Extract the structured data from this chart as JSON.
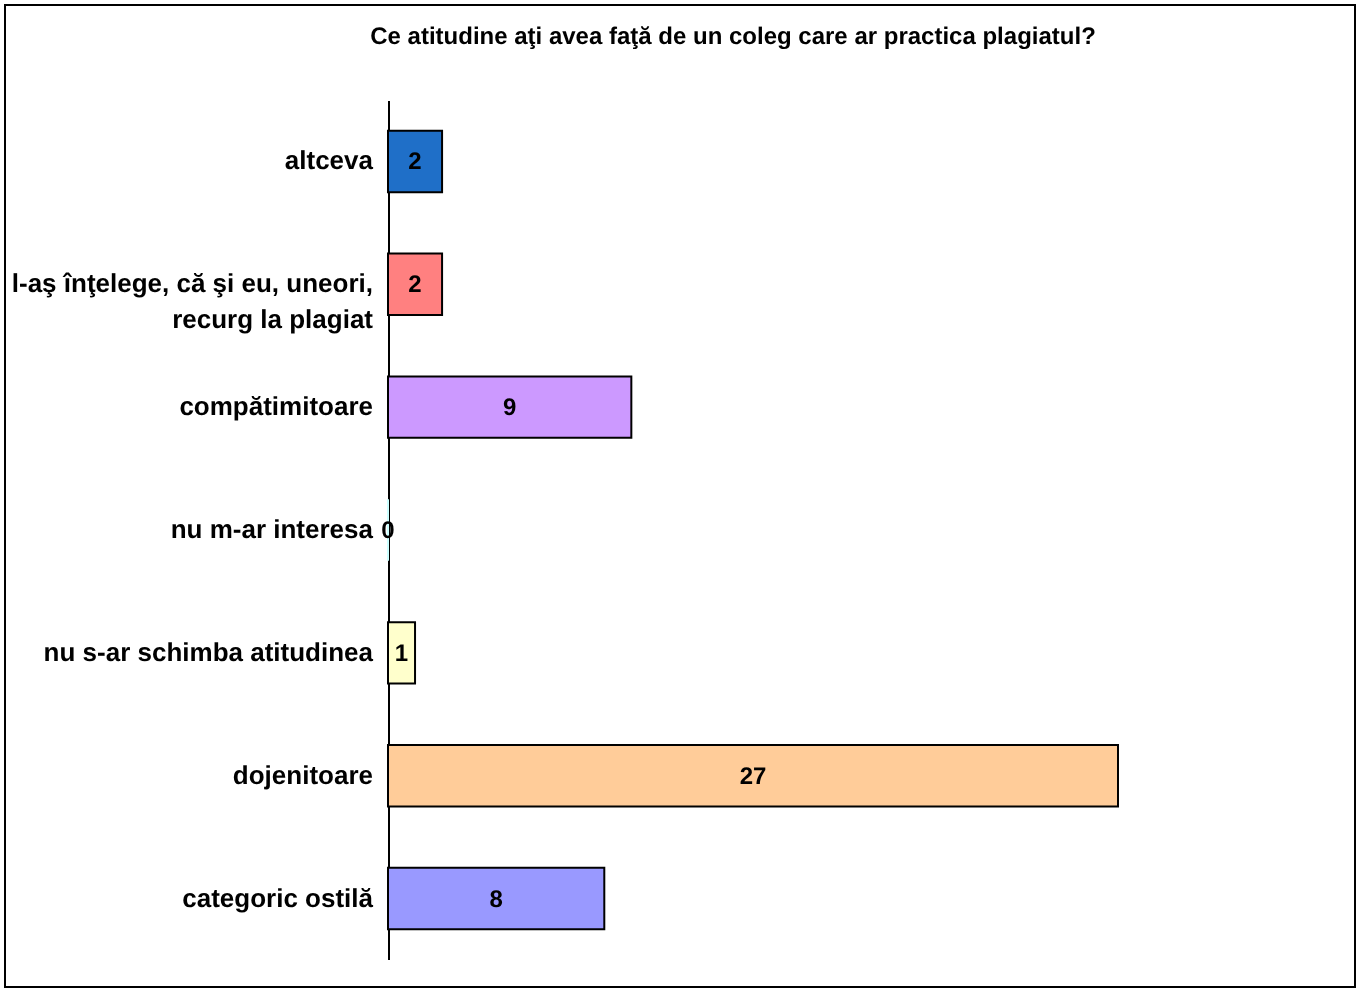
{
  "chart_data": {
    "type": "bar",
    "orientation": "horizontal",
    "title": "Ce atitudine aţi avea faţă de un coleg care ar practica plagiatul?",
    "categories": [
      "altceva",
      "l-aş înţelege, că şi eu, uneori, recurg la plagiat",
      "compătimitoare",
      "nu m-ar interesa",
      "nu s-ar schimba atitudinea",
      "dojenitoare",
      "categoric ostilă"
    ],
    "values": [
      2,
      2,
      9,
      0,
      1,
      27,
      8
    ],
    "colors": [
      "#1f6fc8",
      "#ff8080",
      "#cc99ff",
      "#ccffff",
      "#ffffcc",
      "#ffcc99",
      "#9999ff"
    ],
    "data_labels": true,
    "grid": false,
    "legend": false
  }
}
